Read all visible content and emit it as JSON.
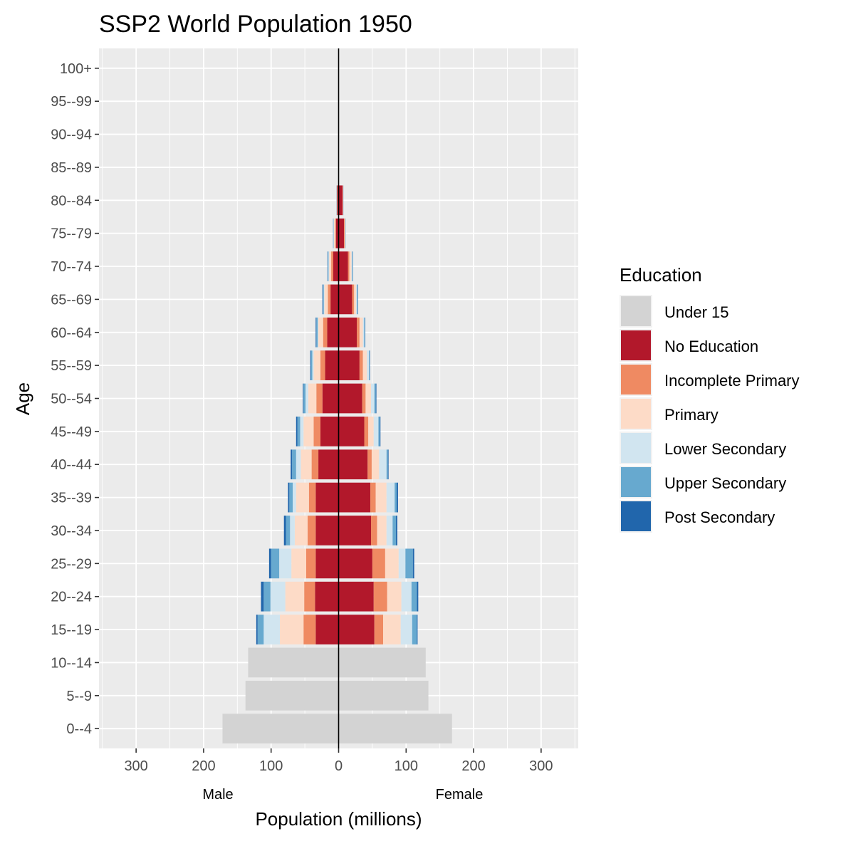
{
  "chart_data": {
    "type": "bar",
    "subtype": "population-pyramid",
    "title": "SSP2 World Population 1950",
    "xlabel": "Population (millions)",
    "ylabel": "Age",
    "xlim": [
      -355,
      355
    ],
    "x_ticks": [
      -300,
      -200,
      -100,
      0,
      100,
      200,
      300
    ],
    "x_tick_labels": [
      "300",
      "200",
      "100",
      "0",
      "100",
      "200",
      "300"
    ],
    "sex_labels": {
      "male": "Male",
      "female": "Female"
    },
    "categories": [
      "0--4",
      "5--9",
      "10--14",
      "15--19",
      "20--24",
      "25--29",
      "30--34",
      "35--39",
      "40--44",
      "45--49",
      "50--54",
      "55--59",
      "60--64",
      "65--69",
      "70--74",
      "75--79",
      "80--84",
      "85--89",
      "90--94",
      "95--99",
      "100+"
    ],
    "legend": {
      "title": "Education",
      "items": [
        {
          "name": "Under 15",
          "color": "#d3d3d3"
        },
        {
          "name": "No Education",
          "color": "#b2182b"
        },
        {
          "name": "Incomplete Primary",
          "color": "#ef8a62"
        },
        {
          "name": "Primary",
          "color": "#fddbc7"
        },
        {
          "name": "Lower Secondary",
          "color": "#d1e5f0"
        },
        {
          "name": "Upper Secondary",
          "color": "#67a9cf"
        },
        {
          "name": "Post Secondary",
          "color": "#2166ac"
        }
      ]
    },
    "series": [
      {
        "name": "Male",
        "sign": -1,
        "values": [
          [
            172,
            0,
            0,
            0,
            0,
            0,
            0
          ],
          [
            138,
            0,
            0,
            0,
            0,
            0,
            0
          ],
          [
            134,
            0,
            0,
            0,
            0,
            0,
            0
          ],
          [
            0,
            34,
            18,
            35,
            24,
            9,
            2
          ],
          [
            0,
            35,
            16,
            28,
            22,
            10,
            4
          ],
          [
            0,
            34,
            14,
            22,
            18,
            12,
            3
          ],
          [
            0,
            34,
            12,
            19,
            7,
            6,
            3
          ],
          [
            0,
            34,
            10,
            19,
            5,
            5,
            2
          ],
          [
            0,
            30,
            10,
            16,
            7,
            6,
            2
          ],
          [
            0,
            27,
            10,
            15,
            5,
            4,
            2
          ],
          [
            0,
            24,
            9,
            12,
            4,
            3,
            1
          ],
          [
            0,
            20,
            7,
            10,
            2,
            2,
            1
          ],
          [
            0,
            17,
            6,
            7,
            1,
            2,
            1
          ],
          [
            0,
            12,
            4,
            5,
            1,
            1,
            1
          ],
          [
            0,
            8,
            3,
            3,
            1,
            1,
            0.5
          ],
          [
            0,
            4,
            1,
            2,
            0.5,
            0.5,
            0.2
          ],
          [
            0,
            2,
            0.5,
            0.5,
            0.2,
            0.2,
            0.1
          ],
          [
            0,
            0,
            0,
            0,
            0,
            0,
            0
          ],
          [
            0,
            0,
            0,
            0,
            0,
            0,
            0
          ],
          [
            0,
            0,
            0,
            0,
            0,
            0,
            0
          ],
          [
            0,
            0,
            0,
            0,
            0,
            0,
            0
          ]
        ]
      },
      {
        "name": "Female",
        "sign": 1,
        "values": [
          [
            168,
            0,
            0,
            0,
            0,
            0,
            0
          ],
          [
            133,
            0,
            0,
            0,
            0,
            0,
            0
          ],
          [
            129,
            0,
            0,
            0,
            0,
            0,
            0
          ],
          [
            0,
            53,
            13,
            26,
            17,
            7,
            1
          ],
          [
            0,
            52,
            20,
            21,
            15,
            8,
            2
          ],
          [
            0,
            50,
            19,
            20,
            10,
            11,
            2
          ],
          [
            0,
            48,
            9,
            14,
            9,
            5,
            2
          ],
          [
            0,
            47,
            8,
            16,
            12,
            3,
            2
          ],
          [
            0,
            43,
            6,
            11,
            11,
            2,
            1
          ],
          [
            0,
            38,
            6,
            8,
            7,
            2,
            1
          ],
          [
            0,
            35,
            5,
            8,
            5,
            2,
            1
          ],
          [
            0,
            31,
            5,
            6,
            3,
            1,
            0.5
          ],
          [
            0,
            27,
            4,
            5,
            2,
            1,
            0.5
          ],
          [
            0,
            20,
            3,
            3,
            1,
            1,
            0.5
          ],
          [
            0,
            14,
            2,
            3,
            1,
            1,
            0.3
          ],
          [
            0,
            8,
            1,
            1,
            0.5,
            0.3,
            0.1
          ],
          [
            0,
            6,
            0.5,
            0.3,
            0.2,
            0.1,
            0.1
          ],
          [
            0,
            0,
            0,
            0,
            0,
            0,
            0
          ],
          [
            0,
            0,
            0,
            0,
            0,
            0,
            0
          ],
          [
            0,
            0,
            0,
            0,
            0,
            0,
            0
          ],
          [
            0,
            0,
            0,
            0,
            0,
            0,
            0
          ]
        ]
      }
    ]
  }
}
